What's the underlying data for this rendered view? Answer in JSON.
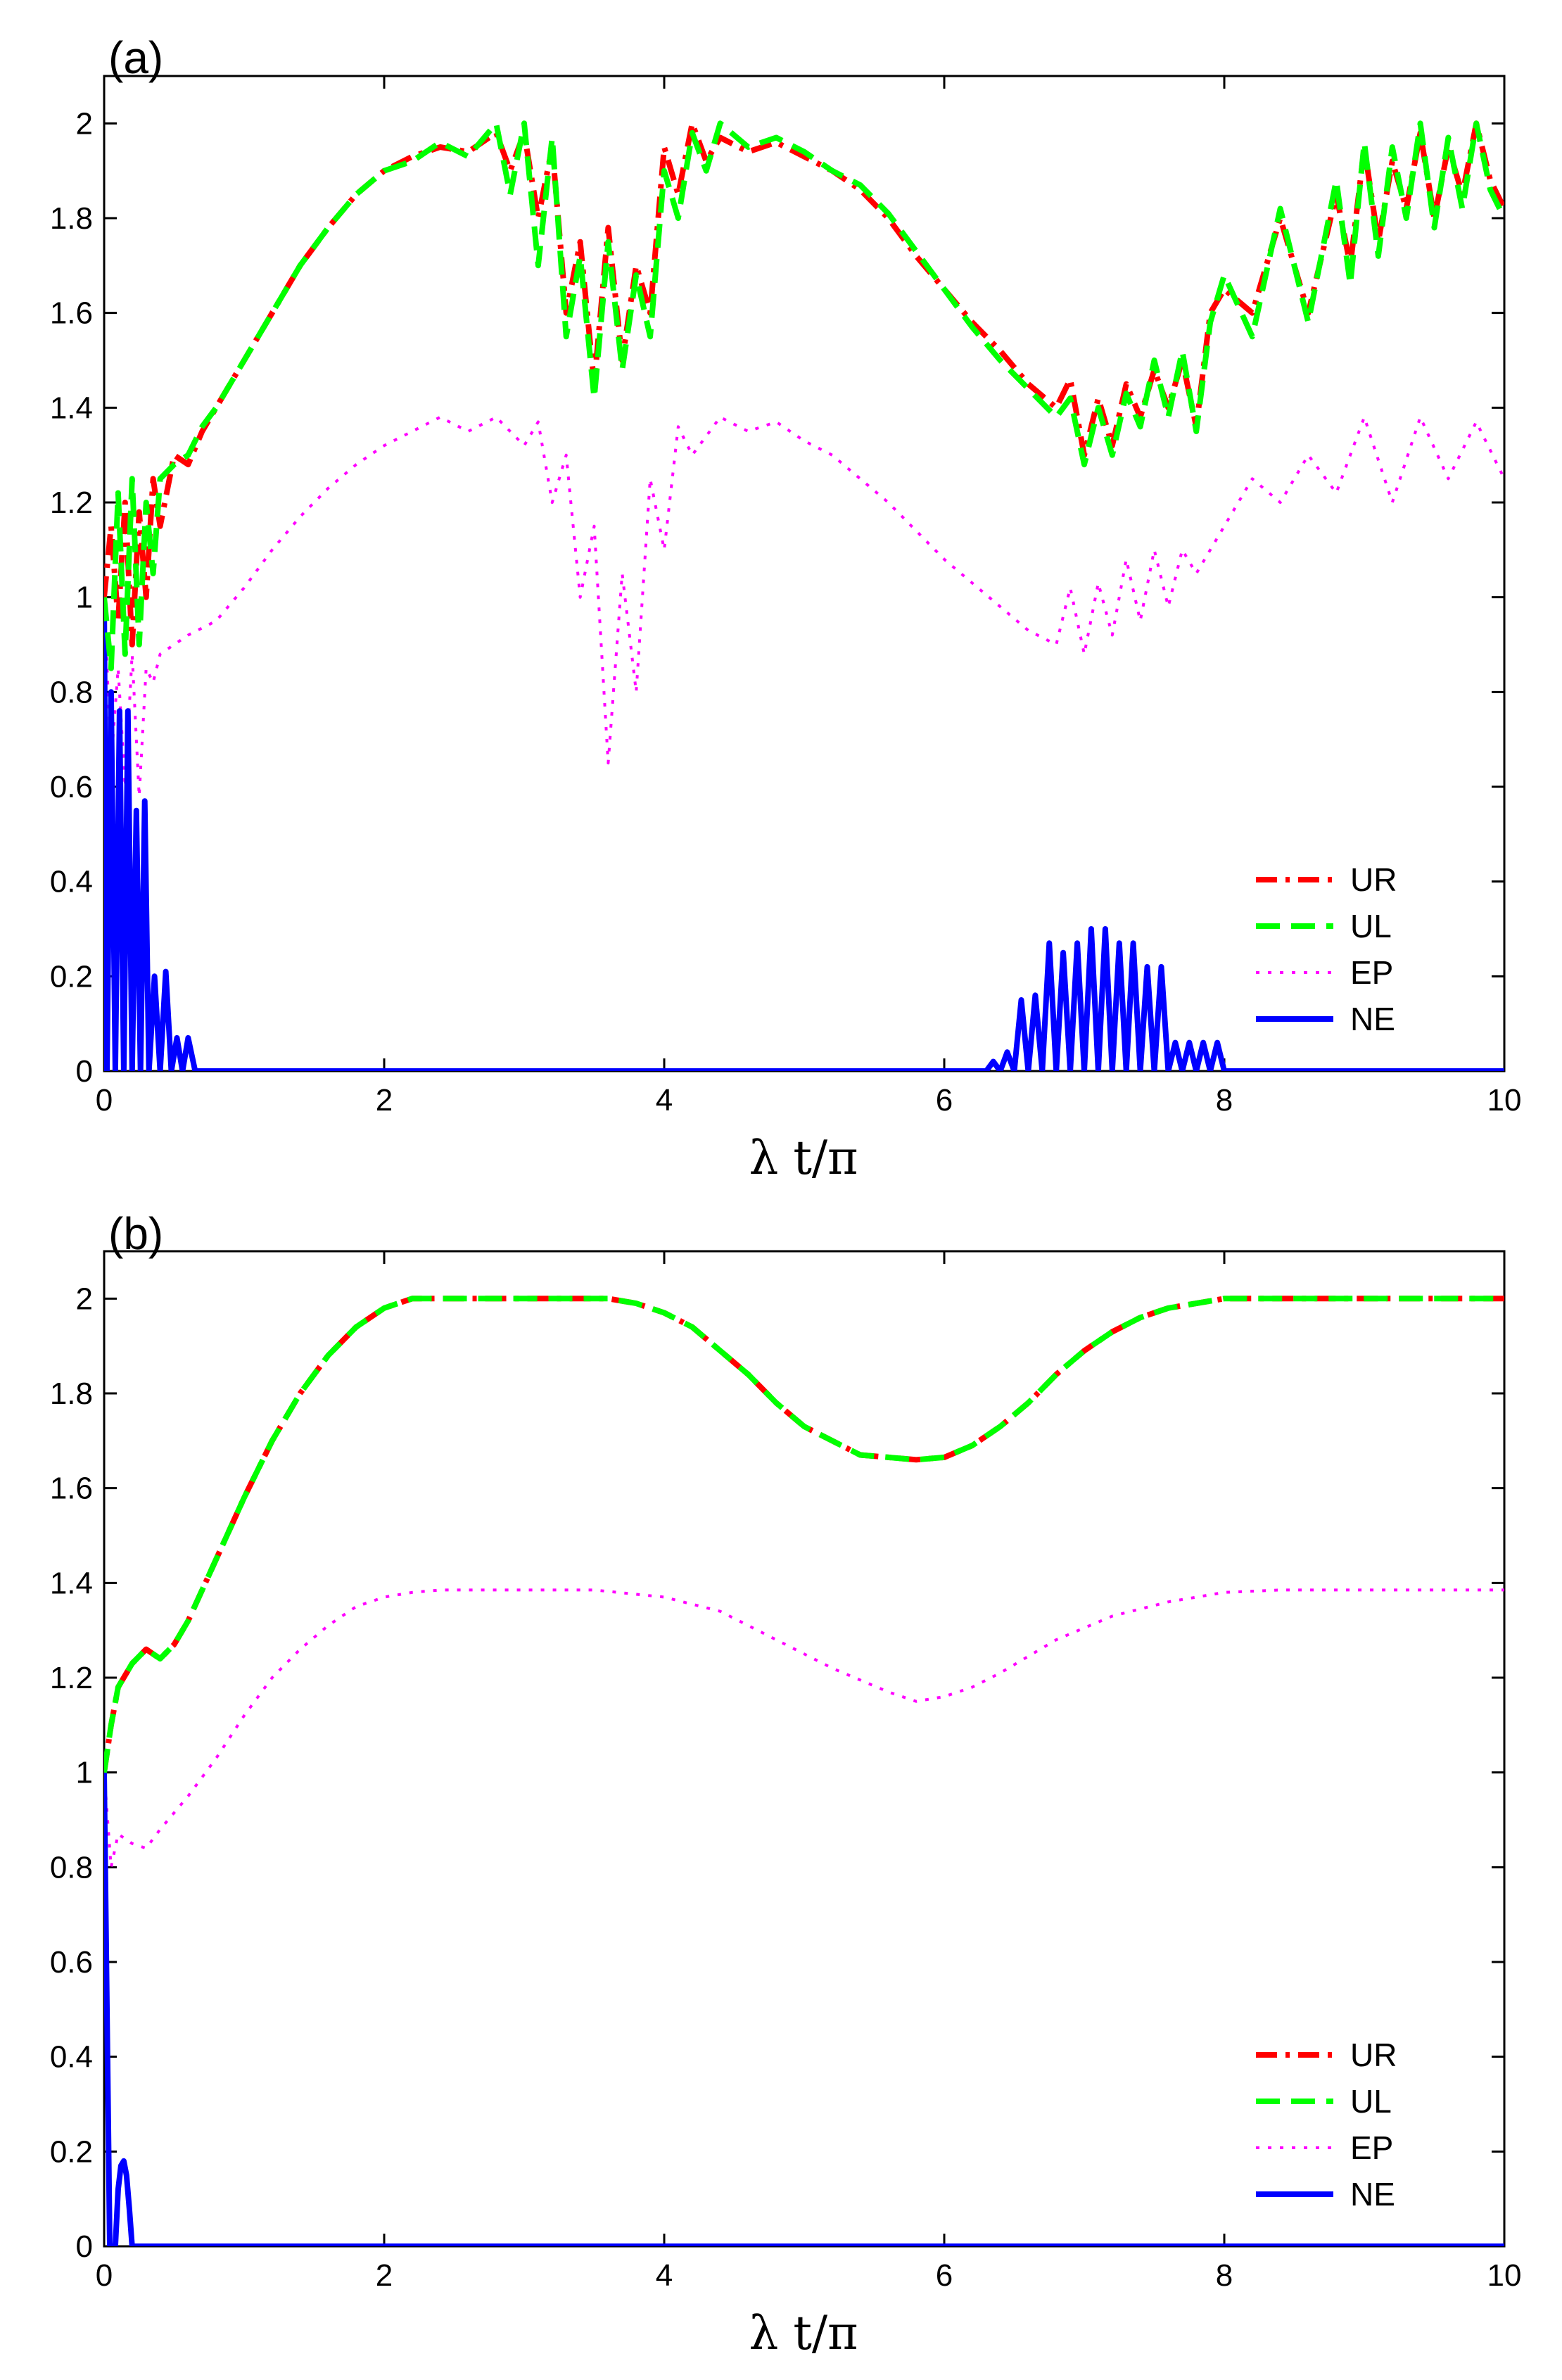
{
  "chart_data": [
    {
      "type": "line",
      "panel_label": "(a)",
      "xlabel": "λ t/π",
      "ylabel": "",
      "xlim": [
        0,
        10
      ],
      "ylim": [
        0,
        2.1
      ],
      "xticks": [
        0,
        2,
        4,
        6,
        8,
        10
      ],
      "yticks": [
        0,
        0.2,
        0.4,
        0.6,
        0.8,
        1,
        1.2,
        1.4,
        1.6,
        1.8,
        2
      ],
      "legend_position": "lower-right",
      "series": [
        {
          "name": "UR",
          "color": "#ff0000",
          "style": "dashdot",
          "x": [
            0,
            0.05,
            0.1,
            0.15,
            0.2,
            0.25,
            0.3,
            0.35,
            0.4,
            0.5,
            0.6,
            0.7,
            0.8,
            1.0,
            1.2,
            1.4,
            1.6,
            1.8,
            2.0,
            2.2,
            2.4,
            2.6,
            2.8,
            2.9,
            3.0,
            3.1,
            3.2,
            3.3,
            3.4,
            3.5,
            3.6,
            3.7,
            3.8,
            3.9,
            4.0,
            4.1,
            4.2,
            4.3,
            4.4,
            4.6,
            4.8,
            5.0,
            5.2,
            5.4,
            5.6,
            5.8,
            6.0,
            6.2,
            6.4,
            6.6,
            6.8,
            6.9,
            7.0,
            7.1,
            7.2,
            7.3,
            7.4,
            7.5,
            7.6,
            7.7,
            7.8,
            7.9,
            8.0,
            8.2,
            8.4,
            8.6,
            8.8,
            8.9,
            9.0,
            9.1,
            9.2,
            9.3,
            9.4,
            9.5,
            9.6,
            9.7,
            9.8,
            9.9,
            10.0
          ],
          "y": [
            1.0,
            1.15,
            0.95,
            1.2,
            0.9,
            1.18,
            1.0,
            1.25,
            1.15,
            1.3,
            1.28,
            1.35,
            1.4,
            1.5,
            1.6,
            1.7,
            1.78,
            1.85,
            1.9,
            1.93,
            1.95,
            1.94,
            1.98,
            1.9,
            1.98,
            1.8,
            1.95,
            1.6,
            1.75,
            1.45,
            1.78,
            1.5,
            1.7,
            1.6,
            1.95,
            1.85,
            2.0,
            1.92,
            1.97,
            1.94,
            1.96,
            1.93,
            1.9,
            1.86,
            1.8,
            1.72,
            1.65,
            1.58,
            1.52,
            1.45,
            1.4,
            1.46,
            1.3,
            1.42,
            1.32,
            1.45,
            1.38,
            1.48,
            1.4,
            1.5,
            1.36,
            1.6,
            1.65,
            1.6,
            1.8,
            1.6,
            1.85,
            1.7,
            1.95,
            1.75,
            1.92,
            1.82,
            1.98,
            1.8,
            1.95,
            1.85,
            2.0,
            1.88,
            1.82
          ]
        },
        {
          "name": "UL",
          "color": "#00ff00",
          "style": "dashed",
          "x": [
            0,
            0.05,
            0.1,
            0.15,
            0.2,
            0.25,
            0.3,
            0.35,
            0.4,
            0.5,
            0.6,
            0.7,
            0.8,
            1.0,
            1.2,
            1.4,
            1.6,
            1.8,
            2.0,
            2.2,
            2.4,
            2.6,
            2.8,
            2.9,
            3.0,
            3.1,
            3.2,
            3.3,
            3.4,
            3.5,
            3.6,
            3.7,
            3.8,
            3.9,
            4.0,
            4.1,
            4.2,
            4.3,
            4.4,
            4.6,
            4.8,
            5.0,
            5.2,
            5.4,
            5.6,
            5.8,
            6.0,
            6.2,
            6.4,
            6.6,
            6.8,
            6.9,
            7.0,
            7.1,
            7.2,
            7.3,
            7.4,
            7.5,
            7.6,
            7.7,
            7.8,
            7.9,
            8.0,
            8.2,
            8.4,
            8.6,
            8.8,
            8.9,
            9.0,
            9.1,
            9.2,
            9.3,
            9.4,
            9.5,
            9.6,
            9.7,
            9.8,
            9.9,
            10.0
          ],
          "y": [
            1.0,
            0.85,
            1.22,
            0.88,
            1.25,
            0.9,
            1.2,
            1.05,
            1.25,
            1.28,
            1.3,
            1.36,
            1.4,
            1.5,
            1.6,
            1.7,
            1.78,
            1.85,
            1.9,
            1.92,
            1.96,
            1.93,
            2.0,
            1.85,
            2.0,
            1.7,
            1.97,
            1.55,
            1.72,
            1.42,
            1.75,
            1.48,
            1.68,
            1.55,
            1.9,
            1.8,
            1.98,
            1.9,
            2.0,
            1.95,
            1.97,
            1.94,
            1.9,
            1.87,
            1.81,
            1.73,
            1.65,
            1.57,
            1.5,
            1.44,
            1.38,
            1.42,
            1.28,
            1.4,
            1.3,
            1.43,
            1.36,
            1.5,
            1.38,
            1.52,
            1.35,
            1.58,
            1.68,
            1.55,
            1.82,
            1.58,
            1.88,
            1.66,
            1.96,
            1.72,
            1.95,
            1.8,
            2.0,
            1.78,
            1.97,
            1.82,
            2.0,
            1.86,
            1.8
          ]
        },
        {
          "name": "EP",
          "color": "#ff00ff",
          "style": "dotted",
          "x": [
            0,
            0.05,
            0.1,
            0.15,
            0.2,
            0.25,
            0.3,
            0.35,
            0.4,
            0.6,
            0.8,
            1.0,
            1.2,
            1.4,
            1.6,
            1.8,
            2.0,
            2.2,
            2.4,
            2.6,
            2.8,
            3.0,
            3.1,
            3.2,
            3.3,
            3.4,
            3.5,
            3.6,
            3.7,
            3.8,
            3.9,
            4.0,
            4.1,
            4.2,
            4.4,
            4.6,
            4.8,
            5.0,
            5.2,
            5.4,
            5.6,
            5.8,
            6.0,
            6.2,
            6.4,
            6.6,
            6.8,
            6.9,
            7.0,
            7.1,
            7.2,
            7.3,
            7.4,
            7.5,
            7.6,
            7.7,
            7.8,
            8.0,
            8.2,
            8.4,
            8.6,
            8.8,
            9.0,
            9.2,
            9.4,
            9.6,
            9.8,
            10.0
          ],
          "y": [
            1.0,
            0.65,
            0.85,
            0.6,
            0.88,
            0.58,
            0.85,
            0.82,
            0.88,
            0.92,
            0.95,
            1.02,
            1.1,
            1.17,
            1.23,
            1.28,
            1.32,
            1.35,
            1.38,
            1.35,
            1.38,
            1.32,
            1.37,
            1.2,
            1.3,
            1.0,
            1.15,
            0.65,
            1.05,
            0.8,
            1.25,
            1.1,
            1.36,
            1.3,
            1.38,
            1.35,
            1.37,
            1.33,
            1.3,
            1.25,
            1.2,
            1.14,
            1.08,
            1.03,
            0.98,
            0.93,
            0.9,
            1.02,
            0.88,
            1.03,
            0.92,
            1.08,
            0.95,
            1.1,
            0.98,
            1.1,
            1.05,
            1.15,
            1.25,
            1.2,
            1.3,
            1.22,
            1.38,
            1.2,
            1.38,
            1.25,
            1.37,
            1.25
          ]
        },
        {
          "name": "NE",
          "color": "#0000ff",
          "style": "solid",
          "x": [
            0,
            0.02,
            0.05,
            0.08,
            0.11,
            0.14,
            0.17,
            0.2,
            0.23,
            0.26,
            0.29,
            0.32,
            0.36,
            0.4,
            0.44,
            0.48,
            0.52,
            0.56,
            0.6,
            0.65,
            6.3,
            6.35,
            6.4,
            6.45,
            6.5,
            6.55,
            6.6,
            6.65,
            6.7,
            6.75,
            6.8,
            6.85,
            6.9,
            6.95,
            7.0,
            7.05,
            7.1,
            7.15,
            7.2,
            7.25,
            7.3,
            7.35,
            7.4,
            7.45,
            7.5,
            7.55,
            7.6,
            7.65,
            7.7,
            7.75,
            7.8,
            7.85,
            7.9,
            7.95,
            8.0,
            8.05,
            8.1,
            10.0
          ],
          "y": [
            1.0,
            0.0,
            0.8,
            0.0,
            0.76,
            0.0,
            0.76,
            0.0,
            0.55,
            0.0,
            0.57,
            0.0,
            0.2,
            0.0,
            0.21,
            0.0,
            0.07,
            0.0,
            0.07,
            0.0,
            0.0,
            0.02,
            0.0,
            0.04,
            0.0,
            0.15,
            0.0,
            0.16,
            0.0,
            0.27,
            0.0,
            0.25,
            0.0,
            0.27,
            0.0,
            0.3,
            0.0,
            0.3,
            0.0,
            0.27,
            0.0,
            0.27,
            0.0,
            0.22,
            0.0,
            0.22,
            0.0,
            0.06,
            0.0,
            0.06,
            0.0,
            0.06,
            0.0,
            0.06,
            0.0,
            0.0,
            0.0,
            0.0
          ]
        }
      ]
    },
    {
      "type": "line",
      "panel_label": "(b)",
      "xlabel": "λ t/π",
      "ylabel": "",
      "xlim": [
        0,
        10
      ],
      "ylim": [
        0,
        2.1
      ],
      "xticks": [
        0,
        2,
        4,
        6,
        8,
        10
      ],
      "yticks": [
        0,
        0.2,
        0.4,
        0.6,
        0.8,
        1,
        1.2,
        1.4,
        1.6,
        1.8,
        2
      ],
      "legend_position": "lower-right",
      "series": [
        {
          "name": "UR",
          "color": "#ff0000",
          "style": "dashdot",
          "x": [
            0,
            0.05,
            0.1,
            0.2,
            0.3,
            0.4,
            0.5,
            0.6,
            0.8,
            1.0,
            1.2,
            1.4,
            1.6,
            1.8,
            2.0,
            2.2,
            2.4,
            2.6,
            2.8,
            3.0,
            3.2,
            3.4,
            3.6,
            3.8,
            4.0,
            4.2,
            4.4,
            4.6,
            4.8,
            5.0,
            5.2,
            5.4,
            5.6,
            5.8,
            6.0,
            6.2,
            6.4,
            6.6,
            6.8,
            7.0,
            7.2,
            7.4,
            7.6,
            7.8,
            8.0,
            8.2,
            8.4,
            8.6,
            8.8,
            9.0,
            9.5,
            10.0
          ],
          "y": [
            1.0,
            1.1,
            1.18,
            1.23,
            1.26,
            1.24,
            1.27,
            1.32,
            1.45,
            1.58,
            1.7,
            1.8,
            1.88,
            1.94,
            1.98,
            2.0,
            2.0,
            2.0,
            2.0,
            2.0,
            2.0,
            2.0,
            2.0,
            1.99,
            1.97,
            1.94,
            1.89,
            1.84,
            1.78,
            1.73,
            1.7,
            1.67,
            1.665,
            1.66,
            1.665,
            1.69,
            1.73,
            1.78,
            1.84,
            1.89,
            1.93,
            1.96,
            1.98,
            1.99,
            2.0,
            2.0,
            2.0,
            2.0,
            2.0,
            2.0,
            2.0,
            2.0
          ]
        },
        {
          "name": "UL",
          "color": "#00ff00",
          "style": "dashed",
          "x": [
            0,
            0.05,
            0.1,
            0.2,
            0.3,
            0.4,
            0.5,
            0.6,
            0.8,
            1.0,
            1.2,
            1.4,
            1.6,
            1.8,
            2.0,
            2.2,
            2.4,
            2.6,
            2.8,
            3.0,
            3.2,
            3.4,
            3.6,
            3.8,
            4.0,
            4.2,
            4.4,
            4.6,
            4.8,
            5.0,
            5.2,
            5.4,
            5.6,
            5.8,
            6.0,
            6.2,
            6.4,
            6.6,
            6.8,
            7.0,
            7.2,
            7.4,
            7.6,
            7.8,
            8.0,
            8.2,
            8.4,
            8.6,
            8.8,
            9.0,
            9.5,
            10.0
          ],
          "y": [
            1.0,
            1.1,
            1.18,
            1.23,
            1.26,
            1.24,
            1.27,
            1.32,
            1.45,
            1.58,
            1.7,
            1.8,
            1.88,
            1.94,
            1.98,
            2.0,
            2.0,
            2.0,
            2.0,
            2.0,
            2.0,
            2.0,
            2.0,
            1.99,
            1.97,
            1.94,
            1.89,
            1.84,
            1.78,
            1.73,
            1.7,
            1.67,
            1.665,
            1.66,
            1.665,
            1.69,
            1.73,
            1.78,
            1.84,
            1.89,
            1.93,
            1.96,
            1.98,
            1.99,
            2.0,
            2.0,
            2.0,
            2.0,
            2.0,
            2.0,
            2.0,
            2.0
          ]
        },
        {
          "name": "EP",
          "color": "#ff00ff",
          "style": "dotted",
          "x": [
            0,
            0.05,
            0.1,
            0.2,
            0.3,
            0.4,
            0.6,
            0.8,
            1.0,
            1.2,
            1.4,
            1.6,
            1.8,
            2.0,
            2.2,
            2.4,
            2.6,
            2.8,
            3.0,
            3.5,
            4.0,
            4.4,
            4.8,
            5.2,
            5.6,
            5.8,
            6.0,
            6.2,
            6.4,
            6.8,
            7.2,
            7.6,
            8.0,
            8.4,
            8.8,
            9.2,
            9.6,
            10.0
          ],
          "y": [
            1.0,
            0.8,
            0.87,
            0.85,
            0.84,
            0.88,
            0.95,
            1.03,
            1.12,
            1.2,
            1.26,
            1.31,
            1.35,
            1.37,
            1.38,
            1.385,
            1.385,
            1.385,
            1.385,
            1.385,
            1.37,
            1.34,
            1.28,
            1.22,
            1.17,
            1.15,
            1.16,
            1.18,
            1.21,
            1.28,
            1.33,
            1.36,
            1.38,
            1.385,
            1.385,
            1.385,
            1.385,
            1.385
          ]
        },
        {
          "name": "NE",
          "color": "#0000ff",
          "style": "solid",
          "x": [
            0,
            0.02,
            0.04,
            0.06,
            0.08,
            0.1,
            0.12,
            0.14,
            0.16,
            0.18,
            0.2,
            0.22,
            10.0
          ],
          "y": [
            1.0,
            0.5,
            0.0,
            0.0,
            0.0,
            0.12,
            0.17,
            0.18,
            0.15,
            0.08,
            0.0,
            0.0,
            0.0
          ]
        }
      ]
    }
  ]
}
